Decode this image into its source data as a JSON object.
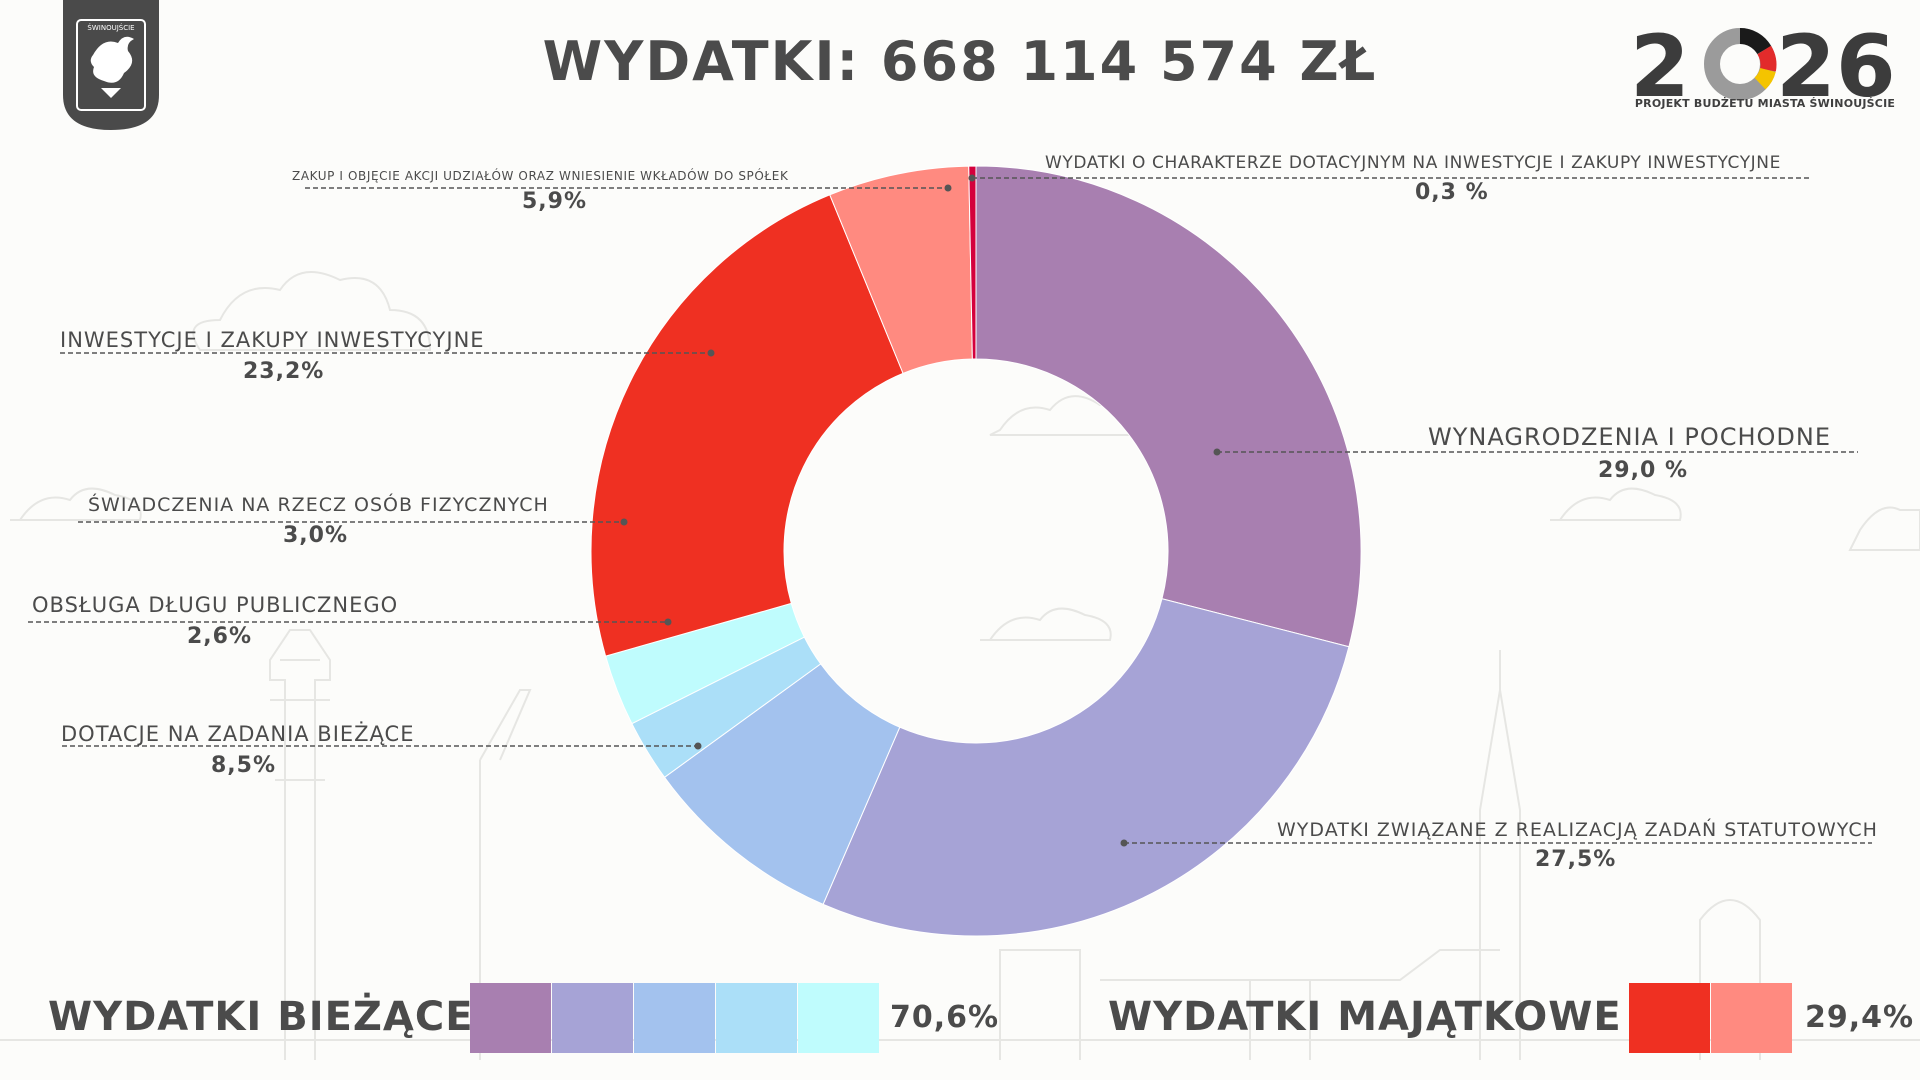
{
  "header": {
    "title": "WYDATKI: 668 114 574 ZŁ",
    "crest_text": "ŚWINOUJŚCIE",
    "logo_year": "2026",
    "logo_subtitle": "PROJEKT BUDŻETU MIASTA ŚWINOUJŚCIE"
  },
  "colors": {
    "text": "#4b4b4b",
    "crest": "#4a4a4a",
    "background": "#fcfcfa"
  },
  "chart_data": {
    "type": "pie",
    "variant": "donut",
    "title": "WYDATKI: 668 114 574 ZŁ",
    "slices": [
      {
        "label": "WYNAGRODZENIA I POCHODNE",
        "value": 29.0,
        "display": "29,0 %",
        "color": "#a87fb0"
      },
      {
        "label": "WYDATKI ZWIĄZANE Z REALIZACJĄ ZADAŃ STATUTOWYCH",
        "value": 27.5,
        "display": "27,5%",
        "color": "#a6a3d6"
      },
      {
        "label": "DOTACJE NA ZADANIA BIEŻĄCE",
        "value": 8.5,
        "display": "8,5%",
        "color": "#a3c2ee"
      },
      {
        "label": "OBSŁUGA DŁUGU PUBLICZNEGO",
        "value": 2.6,
        "display": "2,6%",
        "color": "#abdff8"
      },
      {
        "label": "ŚWIADCZENIA NA RZECZ OSÓB FIZYCZNYCH",
        "value": 3.0,
        "display": "3,0%",
        "color": "#bffcfd"
      },
      {
        "label": "INWESTYCJE I ZAKUPY INWESTYCYJNE",
        "value": 23.2,
        "display": "23,2%",
        "color": "#ef3022"
      },
      {
        "label": "ZAKUP I OBJĘCIE AKCJI UDZIAŁÓW ORAZ WNIESIENIE WKŁADÓW DO SPÓŁEK",
        "value": 5.9,
        "display": "5,9%",
        "color": "#ff8a80"
      },
      {
        "label": "WYDATKI O CHARAKTERZE DOTACYJNYM NA INWESTYCJE I ZAKUPY INWESTYCYJNE",
        "value": 0.3,
        "display": "0,3 %",
        "color": "#d4003c"
      }
    ]
  },
  "footer": {
    "current": {
      "title": "WYDATKI BIEŻĄCE",
      "percent": "70,6%",
      "colors": [
        "#a87fb0",
        "#a6a3d6",
        "#a3c2ee",
        "#abdff8",
        "#bffcfd"
      ]
    },
    "capital": {
      "title": "WYDATKI MAJĄTKOWE",
      "percent": "29,4%",
      "colors": [
        "#ef3022",
        "#ff8a80"
      ]
    }
  }
}
